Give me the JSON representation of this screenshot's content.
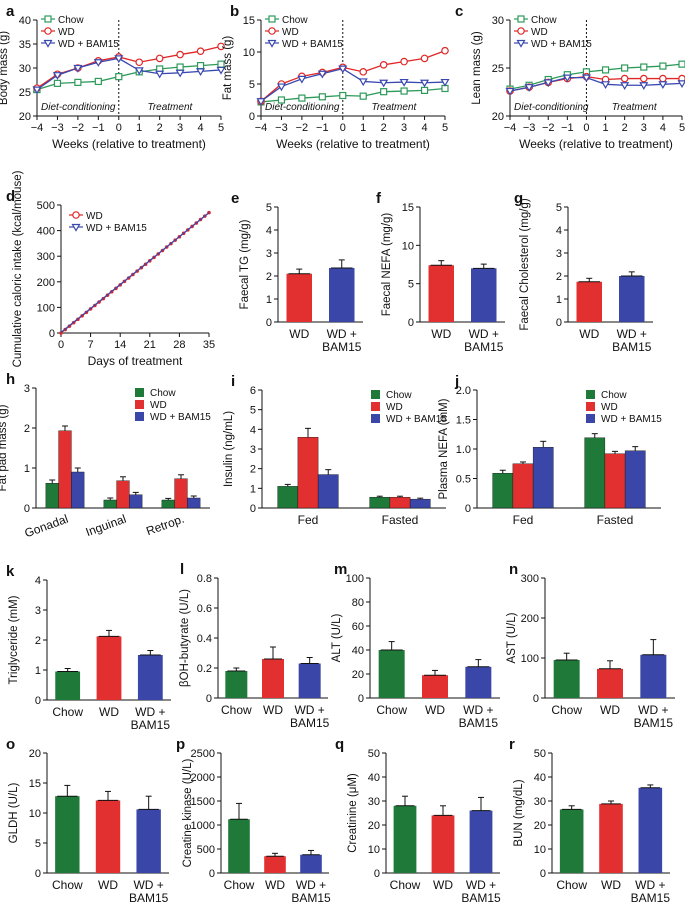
{
  "colors": {
    "chow": "#2e9a5a",
    "wd": "#e02626",
    "bam": "#3848b0",
    "chow_bar": "#1f7a3a",
    "wd_bar": "#e23030",
    "bam_bar": "#3a47a8"
  },
  "chart_data": [
    {
      "id": "a",
      "panel": "a",
      "type": "line",
      "ylabel": "Body mass (g)",
      "xlabel": "Weeks (relative to treatment)",
      "x": [
        -4,
        -3,
        -2,
        -1,
        0,
        1,
        2,
        3,
        4,
        5
      ],
      "xlim": [
        -4,
        5
      ],
      "ylim": [
        20,
        40
      ],
      "yticks": [
        20,
        25,
        30,
        35,
        40
      ],
      "series": [
        {
          "name": "Chow",
          "key": "chow",
          "marker": "square",
          "values": [
            25.5,
            26.8,
            27.0,
            27.2,
            28.2,
            29.2,
            29.8,
            30.2,
            30.5,
            30.8
          ]
        },
        {
          "name": "WD",
          "key": "wd",
          "marker": "circle",
          "values": [
            25.8,
            28.7,
            30.0,
            31.5,
            32.3,
            31.2,
            32.0,
            32.8,
            33.5,
            34.5
          ]
        },
        {
          "name": "WD + BAM15",
          "key": "bam",
          "marker": "triangle",
          "values": [
            25.5,
            28.5,
            30.0,
            31.2,
            32.0,
            29.5,
            28.8,
            29.0,
            29.3,
            29.6
          ]
        }
      ],
      "annotations": [
        "Diet-conditioning",
        "Treatment"
      ]
    },
    {
      "id": "b",
      "panel": "b",
      "type": "line",
      "ylabel": "Fat mass (g)",
      "xlabel": "Weeks (relative to treatment)",
      "x": [
        -4,
        -3,
        -2,
        -1,
        0,
        1,
        2,
        3,
        4,
        5
      ],
      "xlim": [
        -4,
        5
      ],
      "ylim": [
        0,
        15
      ],
      "yticks": [
        0,
        5,
        10,
        15
      ],
      "series": [
        {
          "name": "Chow",
          "key": "chow",
          "marker": "square",
          "values": [
            2.2,
            2.5,
            2.8,
            3.0,
            3.2,
            3.1,
            3.8,
            3.9,
            4.0,
            4.3
          ]
        },
        {
          "name": "WD",
          "key": "wd",
          "marker": "circle",
          "values": [
            2.3,
            5.0,
            6.2,
            6.8,
            7.6,
            6.9,
            8.0,
            8.5,
            9.0,
            10.2
          ]
        },
        {
          "name": "WD + BAM15",
          "key": "bam",
          "marker": "triangle",
          "values": [
            2.3,
            4.6,
            5.8,
            6.6,
            7.4,
            5.4,
            5.2,
            5.3,
            5.2,
            5.3
          ]
        }
      ],
      "annotations": [
        "Diet-conditioning",
        "Treatment"
      ]
    },
    {
      "id": "c",
      "panel": "c",
      "type": "line",
      "ylabel": "Lean mass (g)",
      "xlabel": "Weeks (relative to treatment)",
      "x": [
        -4,
        -3,
        -2,
        -1,
        0,
        1,
        2,
        3,
        4,
        5
      ],
      "xlim": [
        -4,
        5
      ],
      "ylim": [
        20,
        30
      ],
      "yticks": [
        20,
        25,
        30
      ],
      "series": [
        {
          "name": "Chow",
          "key": "chow",
          "marker": "square",
          "values": [
            22.8,
            23.2,
            23.8,
            24.3,
            24.6,
            24.8,
            25.0,
            25.1,
            25.2,
            25.4
          ]
        },
        {
          "name": "WD",
          "key": "wd",
          "marker": "circle",
          "values": [
            22.6,
            23.0,
            23.5,
            23.9,
            24.1,
            23.8,
            23.9,
            23.9,
            23.9,
            23.9
          ]
        },
        {
          "name": "WD + BAM15",
          "key": "bam",
          "marker": "triangle",
          "values": [
            22.6,
            23.0,
            23.5,
            24.0,
            24.0,
            23.3,
            23.2,
            23.2,
            23.3,
            23.4
          ]
        }
      ],
      "annotations": [
        "Diet-conditioning",
        "Treatment"
      ]
    },
    {
      "id": "d",
      "panel": "d",
      "type": "line",
      "ylabel": "Cumulative caloric intake (kcal/mouse)",
      "xlabel": "Days of treatment",
      "xlim": [
        0,
        35
      ],
      "ylim": [
        0,
        500
      ],
      "xticks": [
        0,
        7,
        14,
        21,
        28,
        35
      ],
      "yticks": [
        0,
        100,
        200,
        300,
        400,
        500
      ],
      "series": [
        {
          "name": "WD",
          "key": "wd",
          "end": 470
        },
        {
          "name": "WD + BAM15",
          "key": "bam",
          "end": 468
        }
      ]
    },
    {
      "id": "e",
      "panel": "e",
      "type": "bar",
      "ylabel": "Faecal TG (mg/g)",
      "categories": [
        "WD",
        "WD + BAM15"
      ],
      "values": [
        2.1,
        2.35
      ],
      "errors": [
        0.2,
        0.35
      ],
      "keys": [
        "wd",
        "bam"
      ],
      "ylim": [
        0,
        5
      ],
      "yticks": [
        0,
        1,
        2,
        3,
        4,
        5
      ]
    },
    {
      "id": "f",
      "panel": "f",
      "type": "bar",
      "ylabel": "Faecal NEFA (mg/g)",
      "categories": [
        "WD",
        "WD + BAM15"
      ],
      "values": [
        7.4,
        7.0
      ],
      "errors": [
        0.6,
        0.55
      ],
      "keys": [
        "wd",
        "bam"
      ],
      "ylim": [
        0,
        15
      ],
      "yticks": [
        0,
        5,
        10,
        15
      ]
    },
    {
      "id": "g",
      "panel": "g",
      "type": "bar",
      "ylabel": "Faecal Cholesterol (mg/g)",
      "categories": [
        "WD",
        "WD + BAM15"
      ],
      "values": [
        1.75,
        2.0
      ],
      "errors": [
        0.15,
        0.18
      ],
      "keys": [
        "wd",
        "bam"
      ],
      "ylim": [
        0,
        5
      ],
      "yticks": [
        0,
        1,
        2,
        3,
        4,
        5
      ]
    },
    {
      "id": "h",
      "panel": "h",
      "type": "bar",
      "ylabel": "Fat pad mass (g)",
      "categories": [
        "Gonadal",
        "Inguinal",
        "Retrop."
      ],
      "series": [
        {
          "name": "Chow",
          "key": "chow",
          "values": [
            0.62,
            0.2,
            0.2
          ],
          "errors": [
            0.08,
            0.05,
            0.04
          ]
        },
        {
          "name": "WD",
          "key": "wd",
          "values": [
            1.93,
            0.68,
            0.73
          ],
          "errors": [
            0.12,
            0.1,
            0.1
          ]
        },
        {
          "name": "WD + BAM15",
          "key": "bam",
          "values": [
            0.9,
            0.33,
            0.25
          ],
          "errors": [
            0.1,
            0.06,
            0.05
          ]
        }
      ],
      "ylim": [
        0,
        3
      ],
      "yticks": [
        0,
        1,
        2,
        3
      ]
    },
    {
      "id": "i",
      "panel": "i",
      "type": "bar",
      "ylabel": "Insulin (ng/mL)",
      "categories": [
        "Fed",
        "Fasted"
      ],
      "series": [
        {
          "name": "Chow",
          "key": "chow",
          "values": [
            1.1,
            0.55
          ],
          "errors": [
            0.1,
            0.05
          ]
        },
        {
          "name": "WD",
          "key": "wd",
          "values": [
            3.6,
            0.55
          ],
          "errors": [
            0.45,
            0.05
          ]
        },
        {
          "name": "WD + BAM15",
          "key": "bam",
          "values": [
            1.7,
            0.45
          ],
          "errors": [
            0.25,
            0.05
          ]
        }
      ],
      "ylim": [
        0,
        6
      ],
      "yticks": [
        0,
        1,
        2,
        3,
        4,
        5,
        6
      ]
    },
    {
      "id": "j",
      "panel": "j",
      "type": "bar",
      "ylabel": "Plasma NEFA (mM)",
      "categories": [
        "Fed",
        "Fasted"
      ],
      "series": [
        {
          "name": "Chow",
          "key": "chow",
          "values": [
            0.59,
            1.19
          ],
          "errors": [
            0.05,
            0.07
          ]
        },
        {
          "name": "WD",
          "key": "wd",
          "values": [
            0.75,
            0.92
          ],
          "errors": [
            0.03,
            0.04
          ]
        },
        {
          "name": "WD + BAM15",
          "key": "bam",
          "values": [
            1.03,
            0.97
          ],
          "errors": [
            0.1,
            0.07
          ]
        }
      ],
      "ylim": [
        0,
        2
      ],
      "yticks": [
        0,
        0.5,
        1.0,
        1.5,
        2.0
      ],
      "yticklabels": [
        "0",
        "0.5",
        "1.0",
        "1.5",
        "2.0"
      ]
    },
    {
      "id": "k",
      "panel": "k",
      "type": "bar",
      "ylabel": "Triglyceride (mM)",
      "categories": [
        "Chow",
        "WD",
        "WD + BAM15"
      ],
      "values": [
        0.95,
        2.12,
        1.5
      ],
      "errors": [
        0.1,
        0.2,
        0.15
      ],
      "keys": [
        "chow",
        "wd",
        "bam"
      ],
      "ylim": [
        0,
        4
      ],
      "yticks": [
        0,
        1,
        2,
        3,
        4
      ]
    },
    {
      "id": "l",
      "panel": "l",
      "type": "bar",
      "ylabel": "βOH-butyrate (U/L)",
      "categories": [
        "Chow",
        "WD",
        "WD + BAM15"
      ],
      "values": [
        0.18,
        0.26,
        0.23
      ],
      "errors": [
        0.02,
        0.08,
        0.04
      ],
      "keys": [
        "chow",
        "wd",
        "bam"
      ],
      "ylim": [
        0,
        0.8
      ],
      "yticks": [
        0,
        0.2,
        0.4,
        0.6,
        0.8
      ],
      "yticklabels": [
        "0",
        "0.2",
        "0.4",
        "0.6",
        "0.8"
      ]
    },
    {
      "id": "m",
      "panel": "m",
      "type": "bar",
      "ylabel": "ALT (U/L)",
      "categories": [
        "Chow",
        "WD",
        "WD + BAM15"
      ],
      "values": [
        40,
        19,
        26
      ],
      "errors": [
        7,
        4,
        6
      ],
      "keys": [
        "chow",
        "wd",
        "bam"
      ],
      "ylim": [
        0,
        100
      ],
      "yticks": [
        0,
        20,
        40,
        60,
        80,
        100
      ]
    },
    {
      "id": "n",
      "panel": "n",
      "type": "bar",
      "ylabel": "AST (U/L)",
      "categories": [
        "Chow",
        "WD",
        "WD + BAM15"
      ],
      "values": [
        95,
        73,
        108
      ],
      "errors": [
        17,
        20,
        38
      ],
      "keys": [
        "chow",
        "wd",
        "bam"
      ],
      "ylim": [
        0,
        300
      ],
      "yticks": [
        0,
        100,
        200,
        300
      ]
    },
    {
      "id": "o",
      "panel": "o",
      "type": "bar",
      "ylabel": "GLDH (U/L)",
      "categories": [
        "Chow",
        "WD",
        "WD + BAM15"
      ],
      "values": [
        12.8,
        12.1,
        10.6
      ],
      "errors": [
        1.8,
        1.5,
        2.2
      ],
      "keys": [
        "chow",
        "wd",
        "bam"
      ],
      "ylim": [
        0,
        20
      ],
      "yticks": [
        0,
        5,
        10,
        15,
        20
      ]
    },
    {
      "id": "p",
      "panel": "p",
      "type": "bar",
      "ylabel": "Creatine kinase (U/L)",
      "categories": [
        "Chow",
        "WD",
        "WD + BAM15"
      ],
      "values": [
        1120,
        350,
        380
      ],
      "errors": [
        330,
        60,
        90
      ],
      "keys": [
        "chow",
        "wd",
        "bam"
      ],
      "ylim": [
        0,
        2500
      ],
      "yticks": [
        0,
        500,
        1000,
        1500,
        2000,
        2500
      ]
    },
    {
      "id": "q",
      "panel": "q",
      "type": "bar",
      "ylabel": "Creatinine (μM)",
      "categories": [
        "Chow",
        "WD",
        "WD + BAM15"
      ],
      "values": [
        28,
        24,
        26
      ],
      "errors": [
        4,
        4,
        5.5
      ],
      "keys": [
        "chow",
        "wd",
        "bam"
      ],
      "ylim": [
        0,
        50
      ],
      "yticks": [
        0,
        10,
        20,
        30,
        40,
        50
      ]
    },
    {
      "id": "r",
      "panel": "r",
      "type": "bar",
      "ylabel": "BUN (mg/dL)",
      "categories": [
        "Chow",
        "WD",
        "WD + BAM15"
      ],
      "values": [
        26.5,
        28.8,
        35.5
      ],
      "errors": [
        1.5,
        1.2,
        1.2
      ],
      "keys": [
        "chow",
        "wd",
        "bam"
      ],
      "ylim": [
        0,
        50
      ],
      "yticks": [
        0,
        10,
        20,
        30,
        40,
        50
      ]
    }
  ]
}
